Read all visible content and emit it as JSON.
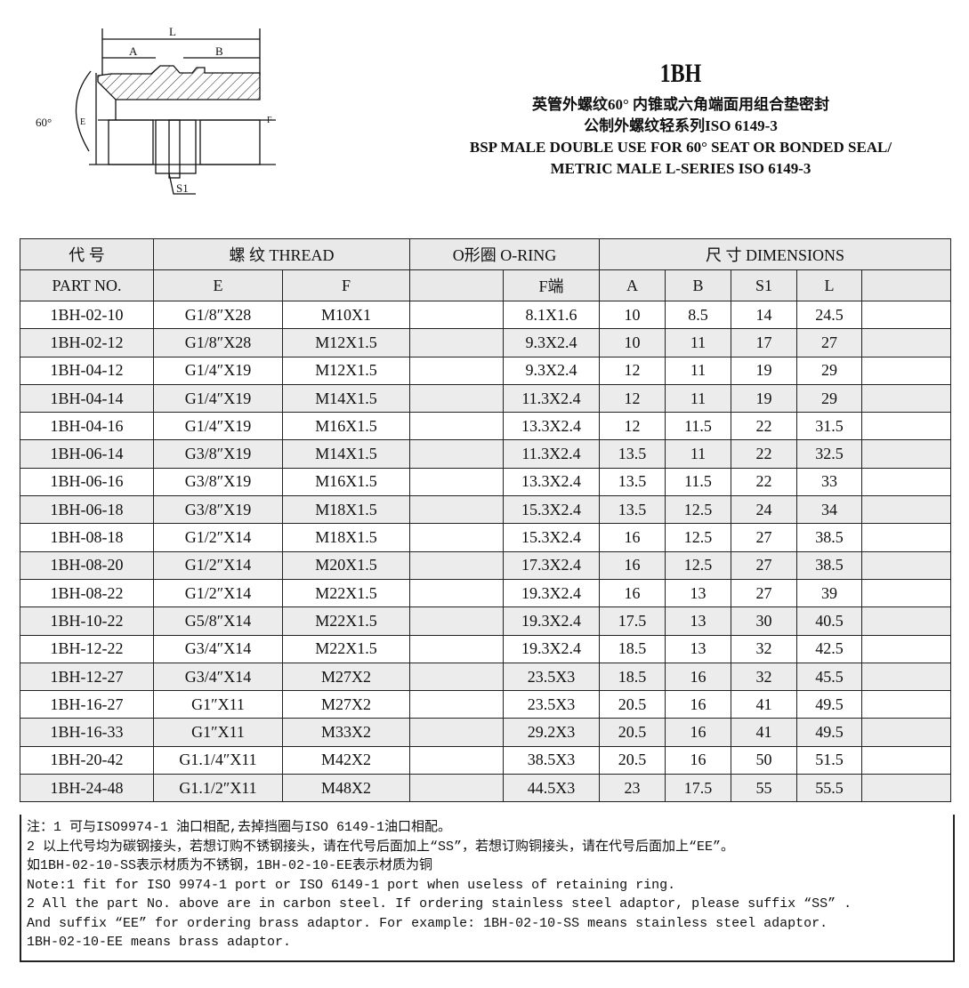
{
  "drawing": {
    "labels": {
      "L": "L",
      "A": "A",
      "B": "B",
      "angle": "60°",
      "E": "E",
      "F": "F",
      "S1": "S1"
    }
  },
  "title": {
    "code": "1BH",
    "cn1": "英管外螺纹60° 内锥或六角端面用组合垫密封",
    "cn2": "公制外螺纹轻系列ISO 6149-3",
    "en1": "BSP MALE DOUBLE USE FOR 60° SEAT OR BONDED SEAL/",
    "en2": "METRIC MALE L-SERIES ISO 6149-3"
  },
  "table": {
    "header1": {
      "part": "代  号",
      "thread": "螺  纹    THREAD",
      "oring": "O形圈 O-RING",
      "dims": "尺  寸      DIMENSIONS"
    },
    "header2": {
      "part": "PART  NO.",
      "E": "E",
      "F": "F",
      "oring_blank": "",
      "fend": "F端",
      "A": "A",
      "B": "B",
      "S1": "S1",
      "L": "L",
      "blank": ""
    },
    "rows": [
      [
        "1BH-02-10",
        "G1/8″X28",
        "M10X1",
        "8.1X1.6",
        "10",
        "8.5",
        "14",
        "24.5"
      ],
      [
        "1BH-02-12",
        "G1/8″X28",
        "M12X1.5",
        "9.3X2.4",
        "10",
        "11",
        "17",
        "27"
      ],
      [
        "1BH-04-12",
        "G1/4″X19",
        "M12X1.5",
        "9.3X2.4",
        "12",
        "11",
        "19",
        "29"
      ],
      [
        "1BH-04-14",
        "G1/4″X19",
        "M14X1.5",
        "11.3X2.4",
        "12",
        "11",
        "19",
        "29"
      ],
      [
        "1BH-04-16",
        "G1/4″X19",
        "M16X1.5",
        "13.3X2.4",
        "12",
        "11.5",
        "22",
        "31.5"
      ],
      [
        "1BH-06-14",
        "G3/8″X19",
        "M14X1.5",
        "11.3X2.4",
        "13.5",
        "11",
        "22",
        "32.5"
      ],
      [
        "1BH-06-16",
        "G3/8″X19",
        "M16X1.5",
        "13.3X2.4",
        "13.5",
        "11.5",
        "22",
        "33"
      ],
      [
        "1BH-06-18",
        "G3/8″X19",
        "M18X1.5",
        "15.3X2.4",
        "13.5",
        "12.5",
        "24",
        "34"
      ],
      [
        "1BH-08-18",
        "G1/2″X14",
        "M18X1.5",
        "15.3X2.4",
        "16",
        "12.5",
        "27",
        "38.5"
      ],
      [
        "1BH-08-20",
        "G1/2″X14",
        "M20X1.5",
        "17.3X2.4",
        "16",
        "12.5",
        "27",
        "38.5"
      ],
      [
        "1BH-08-22",
        "G1/2″X14",
        "M22X1.5",
        "19.3X2.4",
        "16",
        "13",
        "27",
        "39"
      ],
      [
        "1BH-10-22",
        "G5/8″X14",
        "M22X1.5",
        "19.3X2.4",
        "17.5",
        "13",
        "30",
        "40.5"
      ],
      [
        "1BH-12-22",
        "G3/4″X14",
        "M22X1.5",
        "19.3X2.4",
        "18.5",
        "13",
        "32",
        "42.5"
      ],
      [
        "1BH-12-27",
        "G3/4″X14",
        "M27X2",
        "23.5X3",
        "18.5",
        "16",
        "32",
        "45.5"
      ],
      [
        "1BH-16-27",
        "G1″X11",
        "M27X2",
        "23.5X3",
        "20.5",
        "16",
        "41",
        "49.5"
      ],
      [
        "1BH-16-33",
        "G1″X11",
        "M33X2",
        "29.2X3",
        "20.5",
        "16",
        "41",
        "49.5"
      ],
      [
        "1BH-20-42",
        "G1.1/4″X11",
        "M42X2",
        "38.5X3",
        "20.5",
        "16",
        "50",
        "51.5"
      ],
      [
        "1BH-24-48",
        "G1.1/2″X11",
        "M48X2",
        "44.5X3",
        "23",
        "17.5",
        "55",
        "55.5"
      ]
    ]
  },
  "notes": [
    "注：1 可与ISO9974-1 油口相配,去掉挡圈与ISO 6149-1油口相配。",
    "2 以上代号均为碳钢接头，若想订购不锈钢接头，请在代号后面加上“SS”，若想订购铜接头，请在代号后面加上“EE”。",
    "如1BH-02-10-SS表示材质为不锈钢，1BH-02-10-EE表示材质为铜",
    "Note:1 fit for ISO 9974-1 port or ISO 6149-1 port when useless of retaining ring.",
    "2 All the part No. above are in carbon steel. If ordering stainless steel adaptor, please suffix “SS” .",
    "And suffix “EE” for ordering brass adaptor. For example: 1BH-02-10-SS  means stainless steel adaptor.",
    "1BH-02-10-EE means brass adaptor."
  ]
}
